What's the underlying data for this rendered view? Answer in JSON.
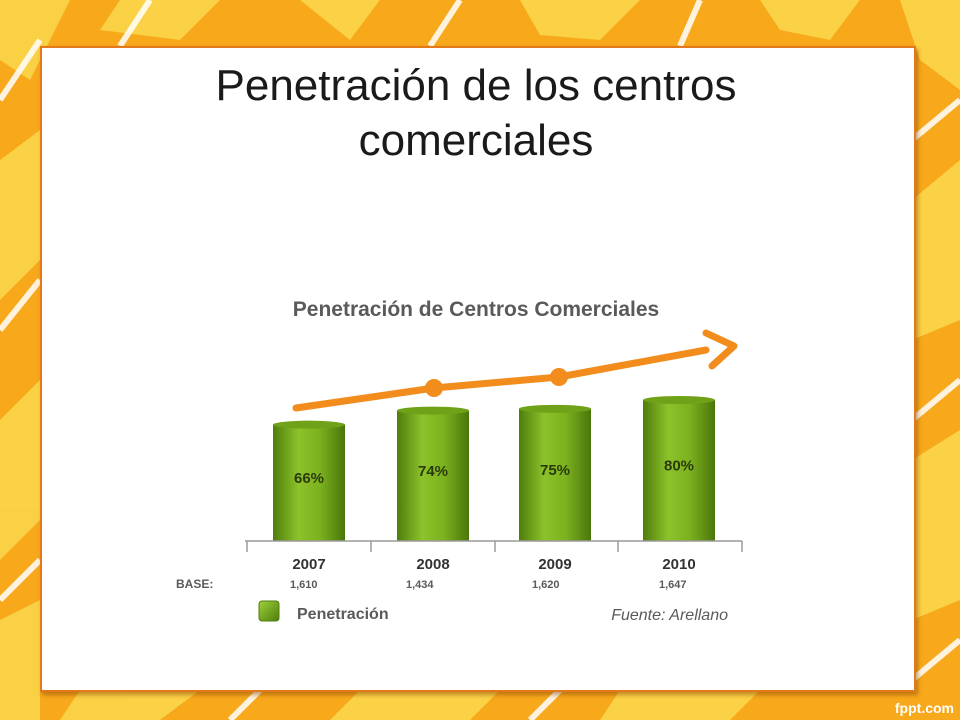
{
  "slide": {
    "title_line1": "Penetración de los centros",
    "title_line2": "comerciales",
    "watermark": "fppt.com"
  },
  "chart_data": {
    "type": "bar",
    "title": "Penetración de Centros Comerciales",
    "categories": [
      "2007",
      "2008",
      "2009",
      "2010"
    ],
    "series": [
      {
        "name": "Penetración",
        "values": [
          66,
          74,
          75,
          80
        ]
      }
    ],
    "value_labels": [
      "66%",
      "74%",
      "75%",
      "80%"
    ],
    "base_label": "BASE:",
    "base_values": [
      "1,610",
      "1,434",
      "1,620",
      "1,647"
    ],
    "source": "Fuente: Arellano",
    "ylim": [
      0,
      80
    ],
    "colors": {
      "bar": "#7cb11f",
      "bar_dark": "#4f7d0c",
      "trend": "#f28c1c",
      "text": "#5a5a5a"
    }
  }
}
